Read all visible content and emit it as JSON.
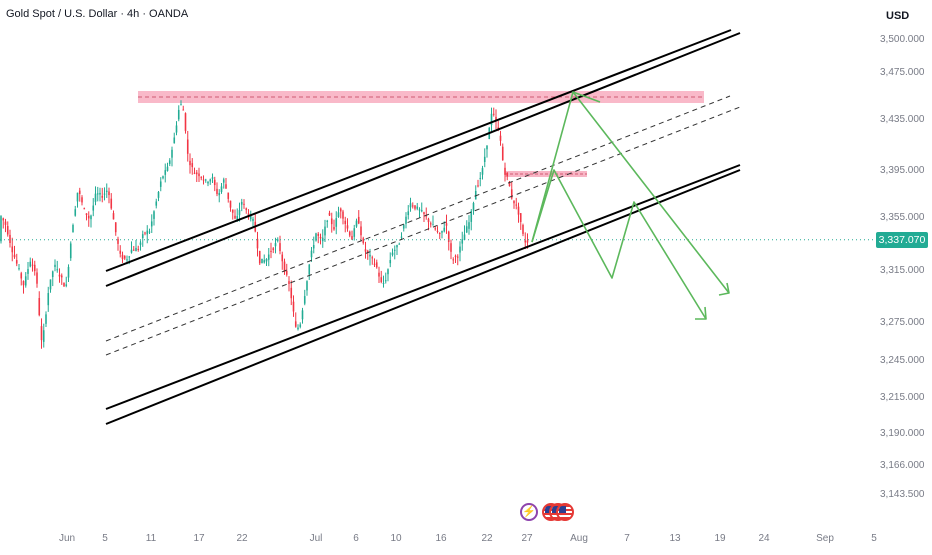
{
  "header": {
    "symbol_title": "Gold Spot / U.S. Dollar · 4h · OANDA",
    "currency": "USD"
  },
  "current_price": {
    "label": "3,337.070",
    "value": 3337.07,
    "color": "#22ab94"
  },
  "events": [
    {
      "icon": "lightning-icon"
    },
    {
      "icon": "us-flag-icon"
    },
    {
      "icon": "us-flag-icon"
    },
    {
      "icon": "us-flag-icon"
    }
  ],
  "chart_data": {
    "type": "candlestick",
    "title": "Gold Spot / U.S. Dollar · 4h · OANDA",
    "grid": false,
    "colors": {
      "up": "#22ab94",
      "down": "#f23645"
    },
    "ylim": [
      3130,
      3520
    ],
    "y_scale": "nonlinear-as-printed",
    "y_ticks": [
      {
        "label": "3,500.000",
        "value": 3500
      },
      {
        "label": "3,475.000",
        "value": 3475
      },
      {
        "label": "3,435.000",
        "value": 3435
      },
      {
        "label": "3,395.000",
        "value": 3395
      },
      {
        "label": "3,355.000",
        "value": 3355
      },
      {
        "label": "3,315.000",
        "value": 3315
      },
      {
        "label": "3,275.000",
        "value": 3275
      },
      {
        "label": "3,245.000",
        "value": 3245
      },
      {
        "label": "3,215.000",
        "value": 3215
      },
      {
        "label": "3,190.000",
        "value": 3190
      },
      {
        "label": "3,166.000",
        "value": 3166
      },
      {
        "label": "3,143.500",
        "value": 3143.5
      }
    ],
    "x_ticks": [
      "Jun",
      "5",
      "11",
      "17",
      "22",
      "Jul",
      "6",
      "10",
      "16",
      "22",
      "27",
      "Aug",
      "7",
      "13",
      "19",
      "24",
      "Sep",
      "5"
    ],
    "last_price": 3337.07,
    "price_path": [
      [
        0,
        3356
      ],
      [
        6,
        3348
      ],
      [
        12,
        3330
      ],
      [
        18,
        3316
      ],
      [
        24,
        3302
      ],
      [
        30,
        3322
      ],
      [
        36,
        3312
      ],
      [
        42,
        3254
      ],
      [
        48,
        3296
      ],
      [
        54,
        3318
      ],
      [
        60,
        3310
      ],
      [
        66,
        3300
      ],
      [
        72,
        3344
      ],
      [
        78,
        3378
      ],
      [
        84,
        3360
      ],
      [
        90,
        3352
      ],
      [
        96,
        3374
      ],
      [
        102,
        3372
      ],
      [
        108,
        3378
      ],
      [
        114,
        3350
      ],
      [
        120,
        3325
      ],
      [
        126,
        3322
      ],
      [
        132,
        3330
      ],
      [
        138,
        3330
      ],
      [
        144,
        3342
      ],
      [
        150,
        3344
      ],
      [
        156,
        3366
      ],
      [
        162,
        3388
      ],
      [
        168,
        3396
      ],
      [
        174,
        3418
      ],
      [
        180,
        3448
      ],
      [
        184,
        3440
      ],
      [
        188,
        3404
      ],
      [
        194,
        3392
      ],
      [
        200,
        3390
      ],
      [
        206,
        3384
      ],
      [
        212,
        3388
      ],
      [
        218,
        3372
      ],
      [
        224,
        3386
      ],
      [
        230,
        3364
      ],
      [
        236,
        3350
      ],
      [
        242,
        3368
      ],
      [
        248,
        3356
      ],
      [
        254,
        3350
      ],
      [
        260,
        3320
      ],
      [
        266,
        3322
      ],
      [
        272,
        3330
      ],
      [
        278,
        3336
      ],
      [
        284,
        3316
      ],
      [
        290,
        3300
      ],
      [
        296,
        3268
      ],
      [
        300,
        3272
      ],
      [
        304,
        3292
      ],
      [
        310,
        3322
      ],
      [
        316,
        3342
      ],
      [
        322,
        3335
      ],
      [
        328,
        3356
      ],
      [
        334,
        3346
      ],
      [
        340,
        3362
      ],
      [
        346,
        3348
      ],
      [
        352,
        3338
      ],
      [
        358,
        3354
      ],
      [
        364,
        3330
      ],
      [
        370,
        3324
      ],
      [
        376,
        3318
      ],
      [
        382,
        3302
      ],
      [
        386,
        3308
      ],
      [
        392,
        3328
      ],
      [
        398,
        3332
      ],
      [
        404,
        3348
      ],
      [
        410,
        3366
      ],
      [
        416,
        3362
      ],
      [
        422,
        3358
      ],
      [
        428,
        3352
      ],
      [
        434,
        3346
      ],
      [
        440,
        3340
      ],
      [
        446,
        3350
      ],
      [
        452,
        3322
      ],
      [
        458,
        3326
      ],
      [
        464,
        3340
      ],
      [
        470,
        3352
      ],
      [
        476,
        3378
      ],
      [
        482,
        3392
      ],
      [
        488,
        3420
      ],
      [
        492,
        3440
      ],
      [
        496,
        3432
      ],
      [
        500,
        3420
      ],
      [
        504,
        3394
      ],
      [
        508,
        3386
      ],
      [
        512,
        3370
      ],
      [
        516,
        3364
      ],
      [
        520,
        3354
      ],
      [
        524,
        3336
      ],
      [
        528,
        3336
      ]
    ],
    "annotations": [
      {
        "type": "resistance-zone",
        "label": "",
        "value_low": 3458,
        "value_high": 3466
      },
      {
        "type": "small-zone",
        "label": "",
        "value_low": 3385,
        "value_high": 3390
      },
      {
        "type": "ascending-channel",
        "label": ""
      },
      {
        "type": "projection-paths",
        "label": ""
      }
    ]
  }
}
